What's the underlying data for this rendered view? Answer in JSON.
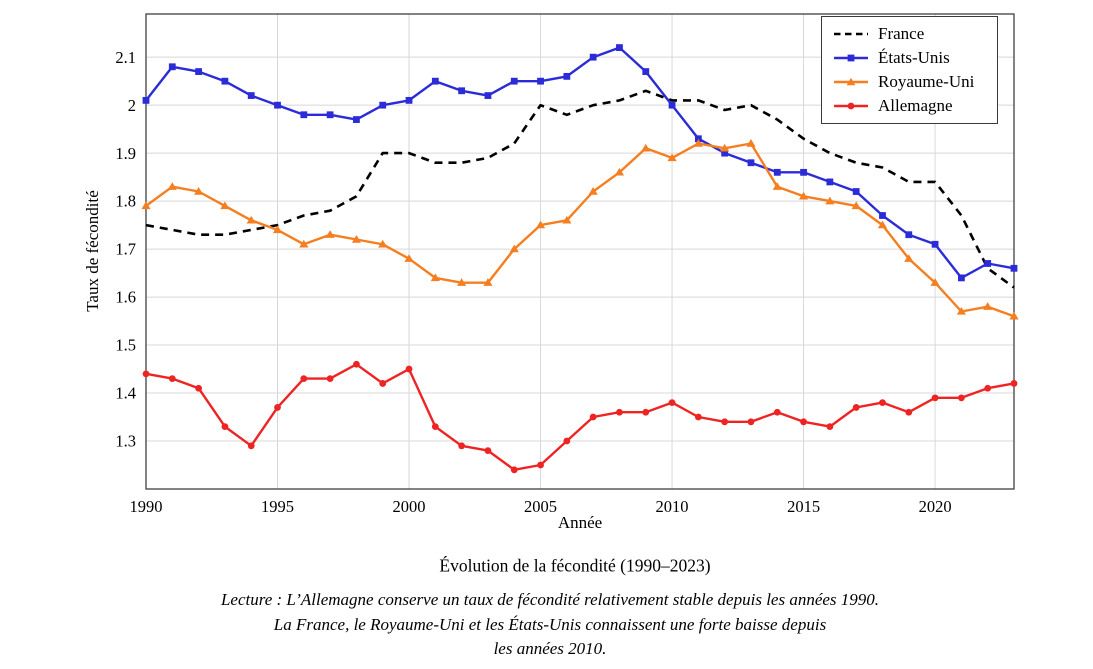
{
  "chart_data": {
    "type": "line",
    "title": "Évolution de la fécondité (1990–2023)",
    "xlabel": "Année",
    "ylabel": "Taux de fécondité",
    "x": [
      1990,
      1991,
      1992,
      1993,
      1994,
      1995,
      1996,
      1997,
      1998,
      1999,
      2000,
      2001,
      2002,
      2003,
      2004,
      2005,
      2006,
      2007,
      2008,
      2009,
      2010,
      2011,
      2012,
      2013,
      2014,
      2015,
      2016,
      2017,
      2018,
      2019,
      2020,
      2021,
      2022,
      2023
    ],
    "series": [
      {
        "name": "France",
        "color": "#000000",
        "style": "dashed",
        "marker": "none",
        "values": [
          1.75,
          1.74,
          1.73,
          1.73,
          1.74,
          1.75,
          1.77,
          1.78,
          1.81,
          1.9,
          1.9,
          1.88,
          1.88,
          1.89,
          1.92,
          2.0,
          1.98,
          2.0,
          2.01,
          2.03,
          2.01,
          2.01,
          1.99,
          2.0,
          1.97,
          1.93,
          1.9,
          1.88,
          1.87,
          1.84,
          1.84,
          1.77,
          1.66,
          1.62
        ]
      },
      {
        "name": "États-Unis",
        "color": "#2b2bd7",
        "style": "solid",
        "marker": "square",
        "values": [
          2.01,
          2.08,
          2.07,
          2.05,
          2.02,
          2.0,
          1.98,
          1.98,
          1.97,
          2.0,
          2.01,
          2.05,
          2.03,
          2.02,
          2.05,
          2.05,
          2.06,
          2.1,
          2.12,
          2.07,
          2.0,
          1.93,
          1.9,
          1.88,
          1.86,
          1.86,
          1.84,
          1.82,
          1.77,
          1.73,
          1.71,
          1.64,
          1.67,
          1.66
        ]
      },
      {
        "name": "Royaume-Uni",
        "color": "#f57e20",
        "style": "solid",
        "marker": "triangle",
        "values": [
          1.79,
          1.83,
          1.82,
          1.79,
          1.76,
          1.74,
          1.71,
          1.73,
          1.72,
          1.71,
          1.68,
          1.64,
          1.63,
          1.63,
          1.7,
          1.75,
          1.76,
          1.82,
          1.86,
          1.91,
          1.89,
          1.92,
          1.91,
          1.92,
          1.83,
          1.81,
          1.8,
          1.79,
          1.75,
          1.68,
          1.63,
          1.57,
          1.58,
          1.56
        ]
      },
      {
        "name": "Allemagne",
        "color": "#ee2424",
        "style": "solid",
        "marker": "circle",
        "values": [
          1.44,
          1.43,
          1.41,
          1.33,
          1.29,
          1.37,
          1.43,
          1.43,
          1.46,
          1.42,
          1.45,
          1.33,
          1.29,
          1.28,
          1.24,
          1.25,
          1.3,
          1.35,
          1.36,
          1.36,
          1.38,
          1.35,
          1.34,
          1.34,
          1.36,
          1.34,
          1.33,
          1.37,
          1.38,
          1.36,
          1.39,
          1.39,
          1.41,
          1.42
        ]
      }
    ],
    "xlim": [
      1990,
      2023
    ],
    "ylim": [
      1.2,
      2.19
    ],
    "xticks": [
      1990,
      1995,
      2000,
      2005,
      2010,
      2015,
      2020
    ],
    "yticks": [
      1.3,
      1.4,
      1.5,
      1.6,
      1.7,
      1.8,
      1.9,
      2,
      2.1
    ],
    "ytick_labels": [
      "1.3",
      "1.4",
      "1.5",
      "1.6",
      "1.7",
      "1.8",
      "1.9",
      "2",
      "2.1"
    ],
    "grid": true,
    "legend_position": "top-right",
    "grid_color": "#d8d8d8",
    "frame_color": "#404040",
    "caption_lines": [
      "Lecture : L’Allemagne conserve un taux de fécondité relativement stable depuis les années 1990.",
      "La France, le Royaume-Uni et les États-Unis connaissent une forte baisse depuis",
      "les années 2010."
    ]
  }
}
